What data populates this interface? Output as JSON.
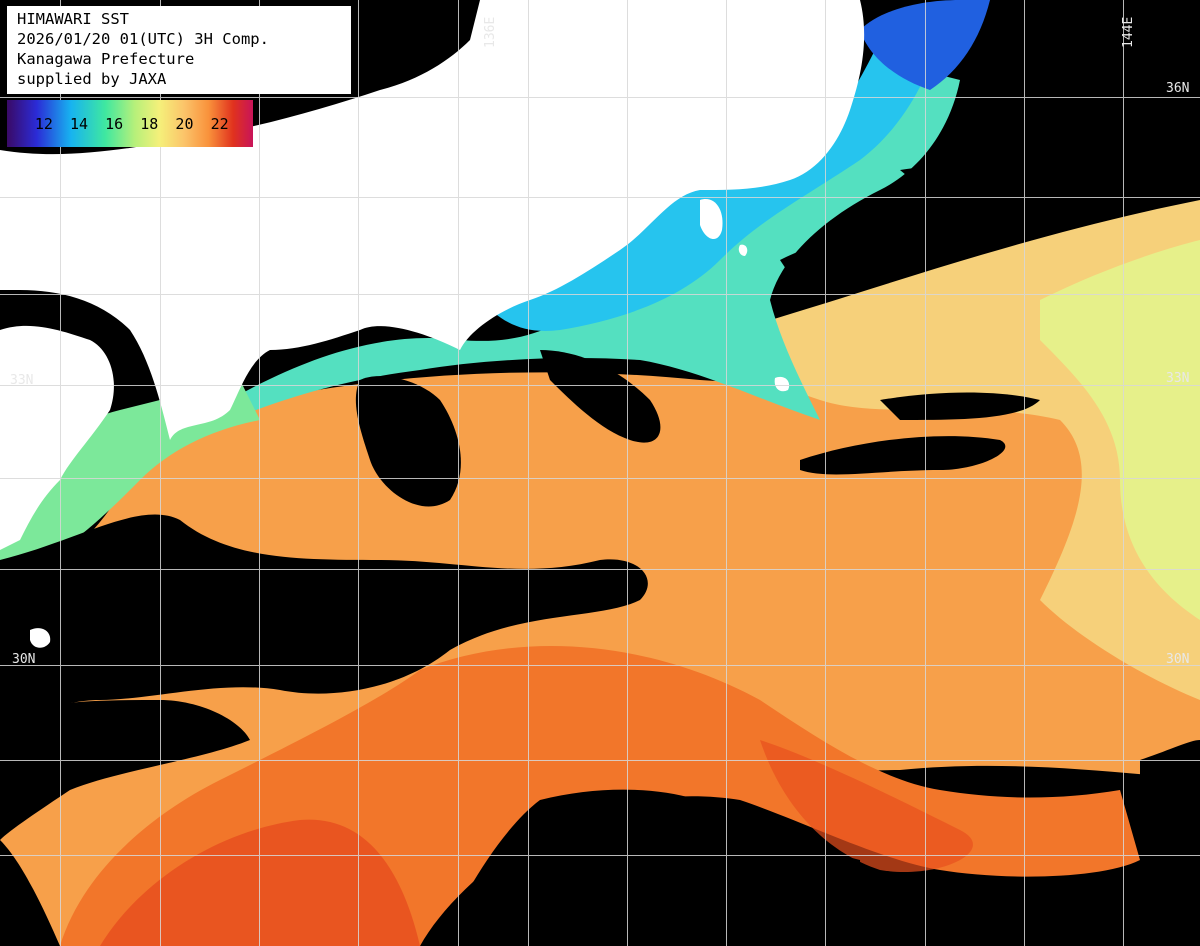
{
  "title": {
    "line1": "HIMAWARI SST",
    "line2": "2026/01/20 01(UTC) 3H Comp.",
    "line3": "Kanagawa Prefecture",
    "line4": "supplied by JAXA"
  },
  "legend": {
    "ticks": [
      "12",
      "14",
      "16",
      "18",
      "20",
      "22"
    ],
    "colors": [
      "#3a0a66",
      "#2b2bd6",
      "#17b3f0",
      "#3fe8a0",
      "#9ff07a",
      "#f5f07a",
      "#fbc46a",
      "#f9913b",
      "#f05a1e",
      "#d41e1e",
      "#c8145a"
    ]
  },
  "grid_labels": {
    "lon_136": "136E",
    "lon_144": "144E",
    "lat_36_right": "36N",
    "lat_33_left": "33N",
    "lat_33_right": "33N",
    "lat_30_left": "30N",
    "lat_30_right": "30N"
  },
  "colors": {
    "land": "#ffffff",
    "no_data": "#000000",
    "grid": "#d8d8d8"
  }
}
